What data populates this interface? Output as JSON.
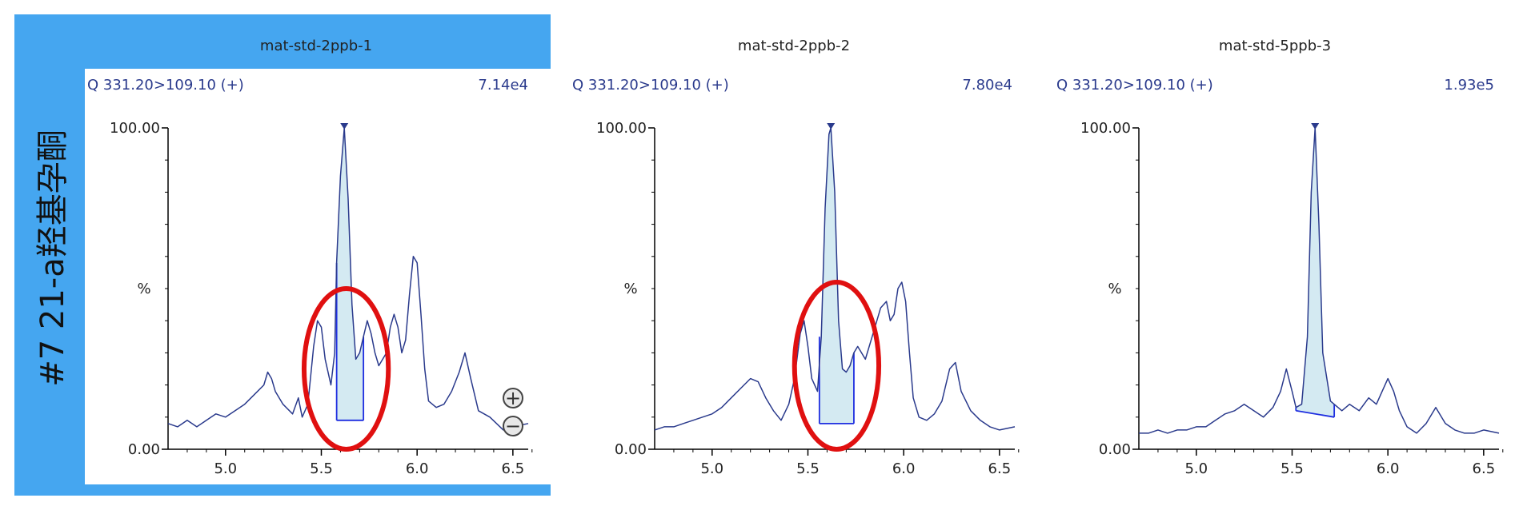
{
  "compound": {
    "label": "#7 21-a羟基孕酮"
  },
  "zoom": {
    "in_icon": "plus-circle-icon",
    "out_icon": "minus-circle-icon",
    "in_glyph": "+",
    "out_glyph": "−"
  },
  "colors": {
    "selected_panel": "#45a6f0",
    "trace": "#2a3a8c",
    "peak_fill": "#d4eaf2",
    "baseline": "#1e2ee0",
    "highlight": "#e01010"
  },
  "chart_data": [
    {
      "type": "line",
      "title": "mat-std-2ppb-1",
      "channel": "Q 331.20>109.10 (+)",
      "max_intensity": "7.14e4",
      "ylabel": "%",
      "yticks": [
        "100.00",
        "0.00"
      ],
      "xticks": [
        "5.0",
        "5.5",
        "6.0",
        "6.5"
      ],
      "xlim": [
        4.7,
        6.58
      ],
      "ylim": [
        0,
        100
      ],
      "selected": true,
      "peak": {
        "start": 5.58,
        "apex": 5.62,
        "end": 5.72,
        "base_start": 9,
        "base_end": 9
      },
      "highlight_circle": {
        "center_x": 5.63,
        "center_y": 25,
        "rx": 0.22,
        "ry": 25
      },
      "x": [
        4.7,
        4.75,
        4.8,
        4.85,
        4.9,
        4.95,
        5.0,
        5.05,
        5.1,
        5.15,
        5.2,
        5.22,
        5.24,
        5.26,
        5.3,
        5.35,
        5.38,
        5.4,
        5.43,
        5.46,
        5.48,
        5.5,
        5.52,
        5.55,
        5.57,
        5.58,
        5.6,
        5.62,
        5.64,
        5.66,
        5.68,
        5.7,
        5.72,
        5.74,
        5.76,
        5.78,
        5.8,
        5.84,
        5.86,
        5.88,
        5.9,
        5.92,
        5.94,
        5.96,
        5.98,
        6.0,
        6.02,
        6.04,
        6.06,
        6.1,
        6.14,
        6.18,
        6.22,
        6.25,
        6.28,
        6.32,
        6.38,
        6.45,
        6.5,
        6.58
      ],
      "y": [
        8,
        7,
        9,
        7,
        9,
        11,
        10,
        12,
        14,
        17,
        20,
        24,
        22,
        18,
        14,
        11,
        16,
        10,
        14,
        32,
        40,
        38,
        28,
        20,
        30,
        58,
        85,
        100,
        78,
        45,
        28,
        30,
        35,
        40,
        36,
        30,
        26,
        30,
        38,
        42,
        38,
        30,
        34,
        48,
        60,
        58,
        42,
        25,
        15,
        13,
        14,
        18,
        24,
        30,
        22,
        12,
        10,
        6,
        7,
        8
      ]
    },
    {
      "type": "line",
      "title": "mat-std-2ppb-2",
      "channel": "Q 331.20>109.10 (+)",
      "max_intensity": "7.80e4",
      "ylabel": "%",
      "yticks": [
        "100.00",
        "0.00"
      ],
      "xticks": [
        "5.0",
        "5.5",
        "6.0",
        "6.5"
      ],
      "xlim": [
        4.7,
        6.58
      ],
      "ylim": [
        0,
        100
      ],
      "selected": false,
      "peak": {
        "start": 5.56,
        "apex": 5.62,
        "end": 5.74,
        "base_start": 8,
        "base_end": 8
      },
      "highlight_circle": {
        "center_x": 5.65,
        "center_y": 26,
        "rx": 0.22,
        "ry": 26
      },
      "x": [
        4.7,
        4.75,
        4.8,
        4.85,
        4.9,
        4.95,
        5.0,
        5.05,
        5.1,
        5.15,
        5.2,
        5.24,
        5.28,
        5.32,
        5.36,
        5.4,
        5.43,
        5.46,
        5.48,
        5.5,
        5.52,
        5.55,
        5.57,
        5.59,
        5.61,
        5.62,
        5.64,
        5.66,
        5.68,
        5.7,
        5.72,
        5.74,
        5.76,
        5.8,
        5.84,
        5.88,
        5.91,
        5.93,
        5.95,
        5.97,
        5.99,
        6.01,
        6.03,
        6.05,
        6.08,
        6.12,
        6.16,
        6.2,
        6.24,
        6.27,
        6.3,
        6.35,
        6.4,
        6.45,
        6.5,
        6.58
      ],
      "y": [
        6,
        7,
        7,
        8,
        9,
        10,
        11,
        13,
        16,
        19,
        22,
        21,
        16,
        12,
        9,
        14,
        22,
        36,
        40,
        32,
        22,
        18,
        35,
        75,
        98,
        100,
        80,
        40,
        25,
        24,
        26,
        30,
        32,
        28,
        36,
        44,
        46,
        40,
        42,
        50,
        52,
        46,
        30,
        16,
        10,
        9,
        11,
        15,
        25,
        27,
        18,
        12,
        9,
        7,
        6,
        7
      ]
    },
    {
      "type": "line",
      "title": "mat-std-5ppb-3",
      "channel": "Q 331.20>109.10 (+)",
      "max_intensity": "1.93e5",
      "ylabel": "%",
      "yticks": [
        "100.00",
        "0.00"
      ],
      "xticks": [
        "5.0",
        "5.5",
        "6.0",
        "6.5"
      ],
      "xlim": [
        4.7,
        6.58
      ],
      "ylim": [
        0,
        100
      ],
      "selected": false,
      "peak": {
        "start": 5.52,
        "apex": 5.62,
        "end": 5.72,
        "base_start": 12,
        "base_end": 10
      },
      "highlight_circle": null,
      "x": [
        4.7,
        4.75,
        4.8,
        4.85,
        4.9,
        4.95,
        5.0,
        5.05,
        5.1,
        5.15,
        5.2,
        5.25,
        5.3,
        5.35,
        5.4,
        5.44,
        5.47,
        5.5,
        5.52,
        5.55,
        5.58,
        5.6,
        5.62,
        5.64,
        5.66,
        5.7,
        5.72,
        5.76,
        5.8,
        5.85,
        5.9,
        5.94,
        5.97,
        6.0,
        6.03,
        6.06,
        6.1,
        6.15,
        6.2,
        6.25,
        6.3,
        6.35,
        6.4,
        6.45,
        6.5,
        6.58
      ],
      "y": [
        5,
        5,
        6,
        5,
        6,
        6,
        7,
        7,
        9,
        11,
        12,
        14,
        12,
        10,
        13,
        18,
        25,
        18,
        13,
        14,
        35,
        80,
        100,
        70,
        30,
        15,
        14,
        12,
        14,
        12,
        16,
        14,
        18,
        22,
        18,
        12,
        7,
        5,
        8,
        13,
        8,
        6,
        5,
        5,
        6,
        5
      ]
    }
  ]
}
